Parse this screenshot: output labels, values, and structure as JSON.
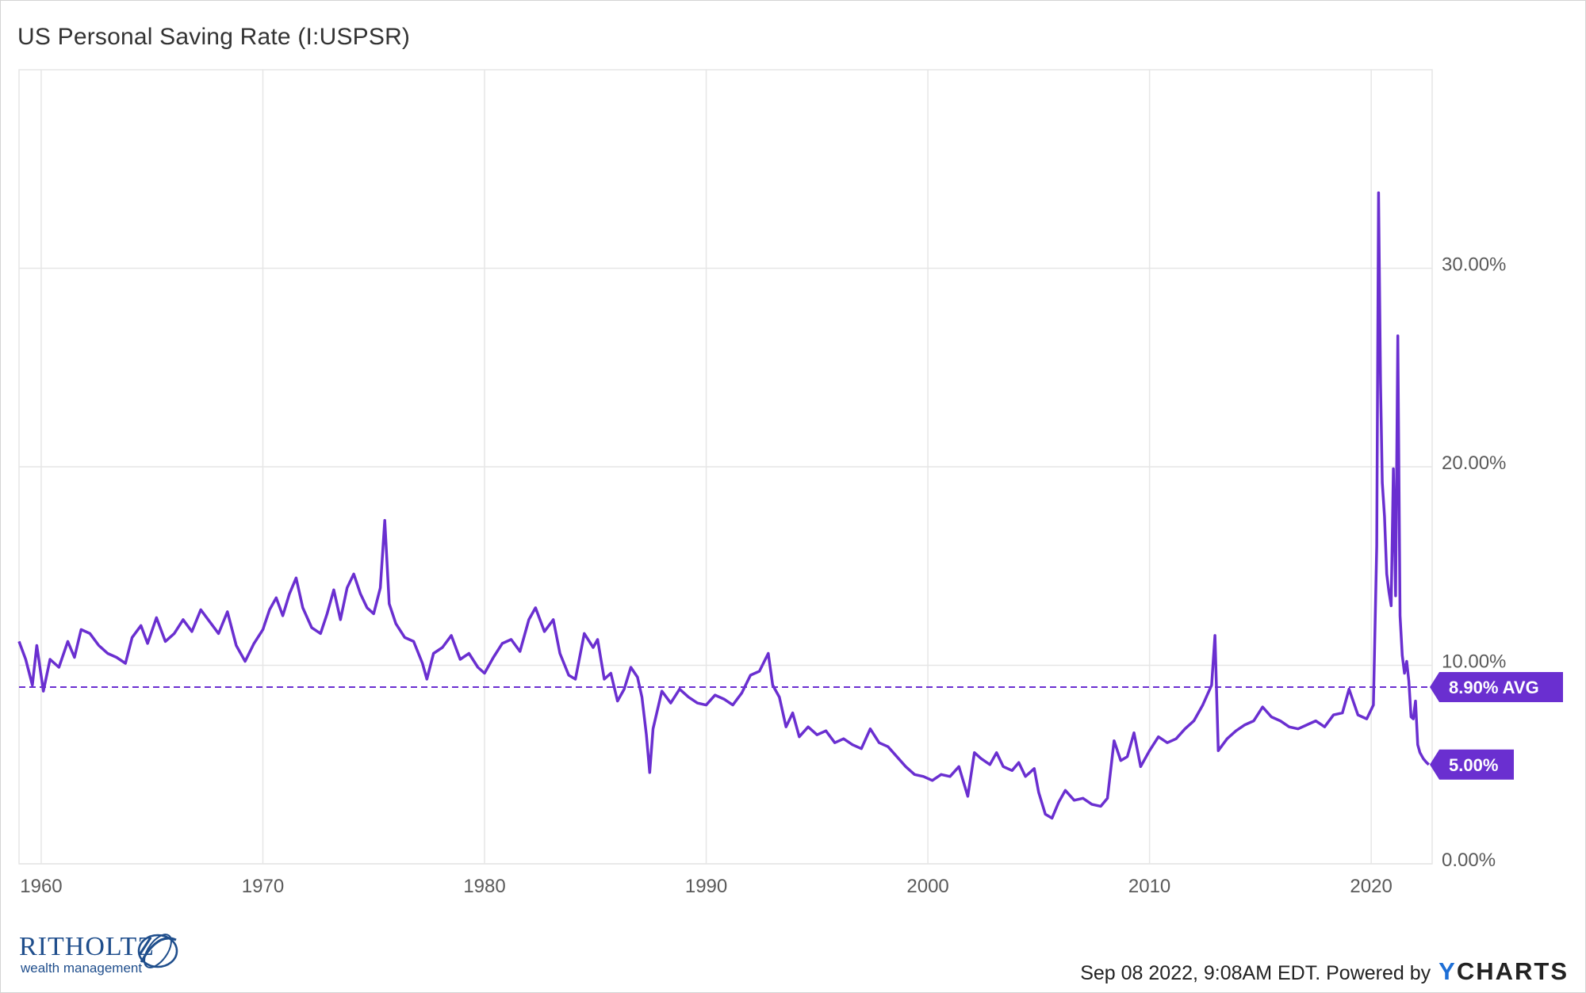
{
  "title": "US Personal Saving Rate (I:USPSR)",
  "footer": {
    "timestamp": "Sep 08 2022, 9:08AM EDT. Powered by ",
    "brand_y": "Y",
    "brand_rest": "CHARTS"
  },
  "logo": {
    "name": "RITHOLTZ",
    "subtitle": "wealth management"
  },
  "colors": {
    "line": "#6a2fd0",
    "grid": "#e6e6e6",
    "badge": "#6a2fd0"
  },
  "chart_data": {
    "type": "line",
    "title": "US Personal Saving Rate (I:USPSR)",
    "x_ticks": [
      "1960",
      "1970",
      "1980",
      "1990",
      "2000",
      "2010",
      "2020"
    ],
    "y_ticks": [
      "0.00%",
      "10.00%",
      "20.00%",
      "30.00%"
    ],
    "xlim": [
      1959.0,
      2022.75
    ],
    "ylim": [
      0,
      40
    ],
    "grid": true,
    "average": {
      "value": 8.9,
      "label": "8.90% AVG"
    },
    "last": {
      "value": 5.0,
      "label": "5.00%"
    },
    "series": [
      {
        "points": [
          [
            1959.0,
            11.2
          ],
          [
            1959.3,
            10.3
          ],
          [
            1959.6,
            9.0
          ],
          [
            1959.8,
            11.0
          ],
          [
            1960.1,
            8.7
          ],
          [
            1960.4,
            10.3
          ],
          [
            1960.8,
            9.9
          ],
          [
            1961.2,
            11.2
          ],
          [
            1961.5,
            10.4
          ],
          [
            1961.8,
            11.8
          ],
          [
            1962.2,
            11.6
          ],
          [
            1962.6,
            11.0
          ],
          [
            1963.0,
            10.6
          ],
          [
            1963.4,
            10.4
          ],
          [
            1963.8,
            10.1
          ],
          [
            1964.1,
            11.4
          ],
          [
            1964.5,
            12.0
          ],
          [
            1964.8,
            11.1
          ],
          [
            1965.2,
            12.4
          ],
          [
            1965.6,
            11.2
          ],
          [
            1966.0,
            11.6
          ],
          [
            1966.4,
            12.3
          ],
          [
            1966.8,
            11.7
          ],
          [
            1967.2,
            12.8
          ],
          [
            1967.6,
            12.2
          ],
          [
            1968.0,
            11.6
          ],
          [
            1968.4,
            12.7
          ],
          [
            1968.8,
            11.0
          ],
          [
            1969.2,
            10.2
          ],
          [
            1969.6,
            11.1
          ],
          [
            1970.0,
            11.8
          ],
          [
            1970.3,
            12.8
          ],
          [
            1970.6,
            13.4
          ],
          [
            1970.9,
            12.5
          ],
          [
            1971.2,
            13.6
          ],
          [
            1971.5,
            14.4
          ],
          [
            1971.8,
            12.9
          ],
          [
            1972.2,
            11.9
          ],
          [
            1972.6,
            11.6
          ],
          [
            1972.9,
            12.6
          ],
          [
            1973.2,
            13.8
          ],
          [
            1973.5,
            12.3
          ],
          [
            1973.8,
            13.9
          ],
          [
            1974.1,
            14.6
          ],
          [
            1974.4,
            13.6
          ],
          [
            1974.7,
            12.9
          ],
          [
            1975.0,
            12.6
          ],
          [
            1975.3,
            13.9
          ],
          [
            1975.5,
            17.3
          ],
          [
            1975.7,
            13.1
          ],
          [
            1976.0,
            12.1
          ],
          [
            1976.4,
            11.4
          ],
          [
            1976.8,
            11.2
          ],
          [
            1977.2,
            10.1
          ],
          [
            1977.4,
            9.3
          ],
          [
            1977.7,
            10.6
          ],
          [
            1978.1,
            10.9
          ],
          [
            1978.5,
            11.5
          ],
          [
            1978.9,
            10.3
          ],
          [
            1979.3,
            10.6
          ],
          [
            1979.7,
            9.9
          ],
          [
            1980.0,
            9.6
          ],
          [
            1980.4,
            10.4
          ],
          [
            1980.8,
            11.1
          ],
          [
            1981.2,
            11.3
          ],
          [
            1981.6,
            10.7
          ],
          [
            1982.0,
            12.3
          ],
          [
            1982.3,
            12.9
          ],
          [
            1982.7,
            11.7
          ],
          [
            1983.1,
            12.3
          ],
          [
            1983.4,
            10.6
          ],
          [
            1983.8,
            9.5
          ],
          [
            1984.1,
            9.3
          ],
          [
            1984.5,
            11.6
          ],
          [
            1984.9,
            10.9
          ],
          [
            1985.1,
            11.3
          ],
          [
            1985.4,
            9.3
          ],
          [
            1985.7,
            9.6
          ],
          [
            1986.0,
            8.2
          ],
          [
            1986.3,
            8.8
          ],
          [
            1986.6,
            9.9
          ],
          [
            1986.9,
            9.4
          ],
          [
            1987.1,
            8.4
          ],
          [
            1987.3,
            6.5
          ],
          [
            1987.45,
            4.6
          ],
          [
            1987.6,
            6.8
          ],
          [
            1988.0,
            8.7
          ],
          [
            1988.4,
            8.1
          ],
          [
            1988.8,
            8.8
          ],
          [
            1989.2,
            8.4
          ],
          [
            1989.6,
            8.1
          ],
          [
            1990.0,
            8.0
          ],
          [
            1990.4,
            8.5
          ],
          [
            1990.8,
            8.3
          ],
          [
            1991.2,
            8.0
          ],
          [
            1991.6,
            8.6
          ],
          [
            1992.0,
            9.5
          ],
          [
            1992.4,
            9.7
          ],
          [
            1992.8,
            10.6
          ],
          [
            1993.0,
            9.0
          ],
          [
            1993.3,
            8.4
          ],
          [
            1993.6,
            6.9
          ],
          [
            1993.9,
            7.6
          ],
          [
            1994.2,
            6.4
          ],
          [
            1994.6,
            6.9
          ],
          [
            1995.0,
            6.5
          ],
          [
            1995.4,
            6.7
          ],
          [
            1995.8,
            6.1
          ],
          [
            1996.2,
            6.3
          ],
          [
            1996.6,
            6.0
          ],
          [
            1997.0,
            5.8
          ],
          [
            1997.4,
            6.8
          ],
          [
            1997.8,
            6.1
          ],
          [
            1998.2,
            5.9
          ],
          [
            1998.6,
            5.4
          ],
          [
            1999.0,
            4.9
          ],
          [
            1999.4,
            4.5
          ],
          [
            1999.8,
            4.4
          ],
          [
            2000.2,
            4.2
          ],
          [
            2000.6,
            4.5
          ],
          [
            2001.0,
            4.4
          ],
          [
            2001.4,
            4.9
          ],
          [
            2001.8,
            3.4
          ],
          [
            2002.1,
            5.6
          ],
          [
            2002.4,
            5.3
          ],
          [
            2002.8,
            5.0
          ],
          [
            2003.1,
            5.6
          ],
          [
            2003.4,
            4.9
          ],
          [
            2003.8,
            4.7
          ],
          [
            2004.1,
            5.1
          ],
          [
            2004.4,
            4.4
          ],
          [
            2004.8,
            4.8
          ],
          [
            2005.0,
            3.6
          ],
          [
            2005.3,
            2.5
          ],
          [
            2005.6,
            2.3
          ],
          [
            2005.9,
            3.1
          ],
          [
            2006.2,
            3.7
          ],
          [
            2006.6,
            3.2
          ],
          [
            2007.0,
            3.3
          ],
          [
            2007.4,
            3.0
          ],
          [
            2007.8,
            2.9
          ],
          [
            2008.1,
            3.3
          ],
          [
            2008.4,
            6.2
          ],
          [
            2008.7,
            5.2
          ],
          [
            2009.0,
            5.4
          ],
          [
            2009.3,
            6.6
          ],
          [
            2009.6,
            4.9
          ],
          [
            2010.0,
            5.7
          ],
          [
            2010.4,
            6.4
          ],
          [
            2010.8,
            6.1
          ],
          [
            2011.2,
            6.3
          ],
          [
            2011.6,
            6.8
          ],
          [
            2012.0,
            7.2
          ],
          [
            2012.4,
            8.0
          ],
          [
            2012.8,
            9.0
          ],
          [
            2012.95,
            11.5
          ],
          [
            2013.1,
            5.7
          ],
          [
            2013.5,
            6.3
          ],
          [
            2013.9,
            6.7
          ],
          [
            2014.3,
            7.0
          ],
          [
            2014.7,
            7.2
          ],
          [
            2015.1,
            7.9
          ],
          [
            2015.5,
            7.4
          ],
          [
            2015.9,
            7.2
          ],
          [
            2016.3,
            6.9
          ],
          [
            2016.7,
            6.8
          ],
          [
            2017.1,
            7.0
          ],
          [
            2017.5,
            7.2
          ],
          [
            2017.9,
            6.9
          ],
          [
            2018.3,
            7.5
          ],
          [
            2018.7,
            7.6
          ],
          [
            2019.0,
            8.8
          ],
          [
            2019.4,
            7.5
          ],
          [
            2019.8,
            7.3
          ],
          [
            2020.1,
            8.0
          ],
          [
            2020.25,
            16.0
          ],
          [
            2020.33,
            33.8
          ],
          [
            2020.42,
            24.2
          ],
          [
            2020.5,
            19.2
          ],
          [
            2020.6,
            17.5
          ],
          [
            2020.7,
            14.6
          ],
          [
            2020.8,
            13.7
          ],
          [
            2020.9,
            13.0
          ],
          [
            2021.0,
            19.9
          ],
          [
            2021.1,
            13.5
          ],
          [
            2021.2,
            26.6
          ],
          [
            2021.3,
            12.5
          ],
          [
            2021.4,
            10.5
          ],
          [
            2021.5,
            9.6
          ],
          [
            2021.6,
            10.2
          ],
          [
            2021.7,
            9.2
          ],
          [
            2021.8,
            7.4
          ],
          [
            2021.9,
            7.3
          ],
          [
            2022.0,
            8.2
          ],
          [
            2022.1,
            6.0
          ],
          [
            2022.2,
            5.6
          ],
          [
            2022.35,
            5.3
          ],
          [
            2022.5,
            5.1
          ],
          [
            2022.6,
            5.0
          ]
        ]
      }
    ]
  }
}
